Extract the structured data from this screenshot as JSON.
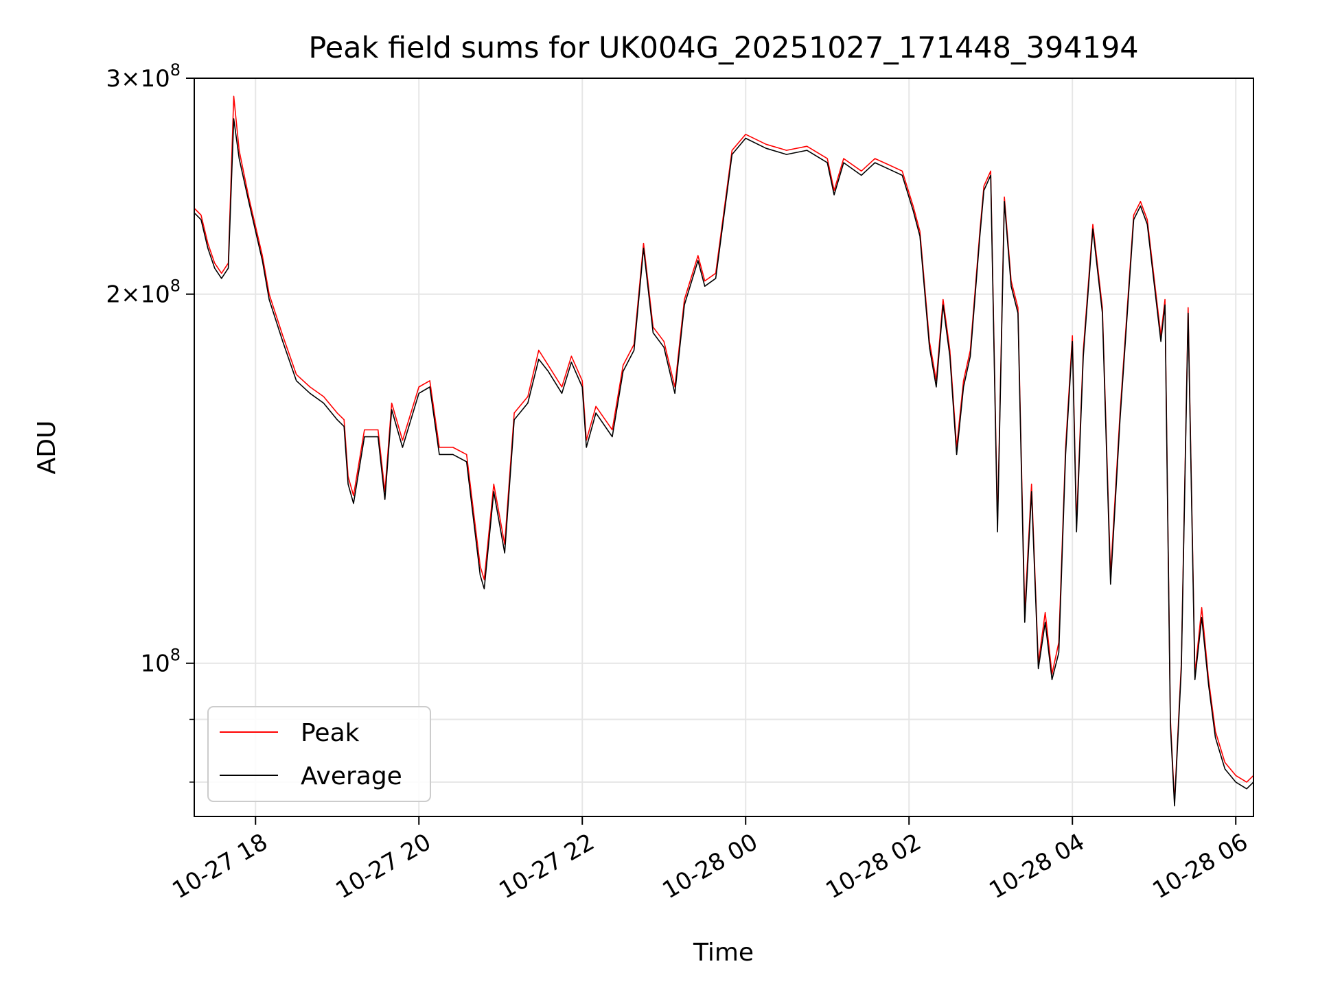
{
  "chart_data": {
    "type": "line",
    "title": "Peak field sums for UK004G_20251027_171448_394194",
    "xlabel": "Time",
    "ylabel": "ADU",
    "y_scale": "log",
    "ylim": [
      75000000,
      300000000
    ],
    "xlim": [
      "2025-10-27 17:15",
      "2025-10-28 06:13"
    ],
    "grid": true,
    "legend_position": "lower-left",
    "x_ticks": [
      {
        "t": "2025-10-27 18:00",
        "label": "10-27 18"
      },
      {
        "t": "2025-10-27 20:00",
        "label": "10-27 20"
      },
      {
        "t": "2025-10-27 22:00",
        "label": "10-27 22"
      },
      {
        "t": "2025-10-28 00:00",
        "label": "10-28 00"
      },
      {
        "t": "2025-10-28 02:00",
        "label": "10-28 02"
      },
      {
        "t": "2025-10-28 04:00",
        "label": "10-28 04"
      },
      {
        "t": "2025-10-28 06:00",
        "label": "10-28 06"
      }
    ],
    "y_ticks": [
      {
        "v": 100000000,
        "mant": "",
        "exp": "8"
      },
      {
        "v": 200000000,
        "mant": "2",
        "exp": "8"
      },
      {
        "v": 300000000,
        "mant": "3",
        "exp": "8"
      }
    ],
    "y_minor_ticks": [
      80000000,
      90000000
    ],
    "colors": {
      "Peak": "#ff0000",
      "Average": "#000000"
    },
    "series": [
      {
        "name": "Peak",
        "color": "#ff0000",
        "points": [
          [
            "2025-10-27 17:15",
            235000000
          ],
          [
            "2025-10-27 17:20",
            232000000
          ],
          [
            "2025-10-27 17:25",
            220000000
          ],
          [
            "2025-10-27 17:30",
            212000000
          ],
          [
            "2025-10-27 17:35",
            208000000
          ],
          [
            "2025-10-27 17:40",
            212000000
          ],
          [
            "2025-10-27 17:44",
            290000000
          ],
          [
            "2025-10-27 17:48",
            262000000
          ],
          [
            "2025-10-27 17:55",
            240000000
          ],
          [
            "2025-10-27 18:05",
            215000000
          ],
          [
            "2025-10-27 18:10",
            200000000
          ],
          [
            "2025-10-27 18:20",
            185000000
          ],
          [
            "2025-10-27 18:30",
            172000000
          ],
          [
            "2025-10-27 18:40",
            168000000
          ],
          [
            "2025-10-27 18:50",
            165000000
          ],
          [
            "2025-10-27 19:00",
            160000000
          ],
          [
            "2025-10-27 19:05",
            158000000
          ],
          [
            "2025-10-27 19:08",
            142000000
          ],
          [
            "2025-10-27 19:12",
            137000000
          ],
          [
            "2025-10-27 19:20",
            155000000
          ],
          [
            "2025-10-27 19:30",
            155000000
          ],
          [
            "2025-10-27 19:35",
            138000000
          ],
          [
            "2025-10-27 19:40",
            163000000
          ],
          [
            "2025-10-27 19:48",
            152000000
          ],
          [
            "2025-10-27 20:00",
            168000000
          ],
          [
            "2025-10-27 20:08",
            170000000
          ],
          [
            "2025-10-27 20:15",
            150000000
          ],
          [
            "2025-10-27 20:25",
            150000000
          ],
          [
            "2025-10-27 20:35",
            148000000
          ],
          [
            "2025-10-27 20:45",
            120000000
          ],
          [
            "2025-10-27 20:48",
            117000000
          ],
          [
            "2025-10-27 20:55",
            140000000
          ],
          [
            "2025-10-27 21:03",
            125000000
          ],
          [
            "2025-10-27 21:10",
            160000000
          ],
          [
            "2025-10-27 21:20",
            165000000
          ],
          [
            "2025-10-27 21:28",
            180000000
          ],
          [
            "2025-10-27 21:35",
            175000000
          ],
          [
            "2025-10-27 21:45",
            168000000
          ],
          [
            "2025-10-27 21:52",
            178000000
          ],
          [
            "2025-10-27 22:00",
            170000000
          ],
          [
            "2025-10-27 22:03",
            152000000
          ],
          [
            "2025-10-27 22:10",
            162000000
          ],
          [
            "2025-10-27 22:22",
            155000000
          ],
          [
            "2025-10-27 22:30",
            175000000
          ],
          [
            "2025-10-27 22:38",
            182000000
          ],
          [
            "2025-10-27 22:45",
            220000000
          ],
          [
            "2025-10-27 22:52",
            188000000
          ],
          [
            "2025-10-27 23:00",
            183000000
          ],
          [
            "2025-10-27 23:08",
            168000000
          ],
          [
            "2025-10-27 23:15",
            198000000
          ],
          [
            "2025-10-27 23:25",
            215000000
          ],
          [
            "2025-10-27 23:30",
            205000000
          ],
          [
            "2025-10-27 23:38",
            208000000
          ],
          [
            "2025-10-27 23:50",
            262000000
          ],
          [
            "2025-10-28 00:00",
            270000000
          ],
          [
            "2025-10-28 00:15",
            265000000
          ],
          [
            "2025-10-28 00:30",
            262000000
          ],
          [
            "2025-10-28 00:45",
            264000000
          ],
          [
            "2025-10-28 01:00",
            258000000
          ],
          [
            "2025-10-28 01:05",
            243000000
          ],
          [
            "2025-10-28 01:12",
            258000000
          ],
          [
            "2025-10-28 01:25",
            252000000
          ],
          [
            "2025-10-28 01:35",
            258000000
          ],
          [
            "2025-10-28 01:45",
            255000000
          ],
          [
            "2025-10-28 01:55",
            252000000
          ],
          [
            "2025-10-28 02:03",
            236000000
          ],
          [
            "2025-10-28 02:08",
            225000000
          ],
          [
            "2025-10-28 02:15",
            183000000
          ],
          [
            "2025-10-28 02:20",
            170000000
          ],
          [
            "2025-10-28 02:25",
            198000000
          ],
          [
            "2025-10-28 02:30",
            180000000
          ],
          [
            "2025-10-28 02:35",
            150000000
          ],
          [
            "2025-10-28 02:40",
            170000000
          ],
          [
            "2025-10-28 02:45",
            180000000
          ],
          [
            "2025-10-28 02:52",
            225000000
          ],
          [
            "2025-10-28 02:55",
            245000000
          ],
          [
            "2025-10-28 03:00",
            252000000
          ],
          [
            "2025-10-28 03:05",
            130000000
          ],
          [
            "2025-10-28 03:10",
            240000000
          ],
          [
            "2025-10-28 03:15",
            205000000
          ],
          [
            "2025-10-28 03:20",
            195000000
          ],
          [
            "2025-10-28 03:25",
            110000000
          ],
          [
            "2025-10-28 03:30",
            140000000
          ],
          [
            "2025-10-28 03:35",
            100000000
          ],
          [
            "2025-10-28 03:40",
            110000000
          ],
          [
            "2025-10-28 03:45",
            98000000
          ],
          [
            "2025-10-28 03:50",
            104000000
          ],
          [
            "2025-10-28 03:55",
            150000000
          ],
          [
            "2025-10-28 04:00",
            185000000
          ],
          [
            "2025-10-28 04:03",
            130000000
          ],
          [
            "2025-10-28 04:08",
            180000000
          ],
          [
            "2025-10-28 04:15",
            228000000
          ],
          [
            "2025-10-28 04:22",
            195000000
          ],
          [
            "2025-10-28 04:28",
            118000000
          ],
          [
            "2025-10-28 04:35",
            160000000
          ],
          [
            "2025-10-28 04:45",
            232000000
          ],
          [
            "2025-10-28 04:50",
            238000000
          ],
          [
            "2025-10-28 04:55",
            230000000
          ],
          [
            "2025-10-28 05:05",
            185000000
          ],
          [
            "2025-10-28 05:08",
            198000000
          ],
          [
            "2025-10-28 05:12",
            90000000
          ],
          [
            "2025-10-28 05:15",
            77000000
          ],
          [
            "2025-10-28 05:20",
            100000000
          ],
          [
            "2025-10-28 05:25",
            195000000
          ],
          [
            "2025-10-28 05:30",
            98000000
          ],
          [
            "2025-10-28 05:35",
            111000000
          ],
          [
            "2025-10-28 05:40",
            97000000
          ],
          [
            "2025-10-28 05:45",
            88000000
          ],
          [
            "2025-10-28 05:52",
            83000000
          ],
          [
            "2025-10-28 06:00",
            81000000
          ],
          [
            "2025-10-28 06:08",
            80000000
          ],
          [
            "2025-10-28 06:13",
            81000000
          ]
        ]
      },
      {
        "name": "Average",
        "color": "#000000",
        "points": [
          [
            "2025-10-27 17:15",
            233000000
          ],
          [
            "2025-10-27 17:20",
            230000000
          ],
          [
            "2025-10-27 17:25",
            218000000
          ],
          [
            "2025-10-27 17:30",
            210000000
          ],
          [
            "2025-10-27 17:35",
            206000000
          ],
          [
            "2025-10-27 17:40",
            210000000
          ],
          [
            "2025-10-27 17:44",
            278000000
          ],
          [
            "2025-10-27 17:48",
            258000000
          ],
          [
            "2025-10-27 17:55",
            238000000
          ],
          [
            "2025-10-27 18:05",
            213000000
          ],
          [
            "2025-10-27 18:10",
            198000000
          ],
          [
            "2025-10-27 18:20",
            183000000
          ],
          [
            "2025-10-27 18:30",
            170000000
          ],
          [
            "2025-10-27 18:40",
            166000000
          ],
          [
            "2025-10-27 18:50",
            163000000
          ],
          [
            "2025-10-27 19:00",
            158000000
          ],
          [
            "2025-10-27 19:05",
            156000000
          ],
          [
            "2025-10-27 19:08",
            140000000
          ],
          [
            "2025-10-27 19:12",
            135000000
          ],
          [
            "2025-10-27 19:20",
            153000000
          ],
          [
            "2025-10-27 19:30",
            153000000
          ],
          [
            "2025-10-27 19:35",
            136000000
          ],
          [
            "2025-10-27 19:40",
            161000000
          ],
          [
            "2025-10-27 19:48",
            150000000
          ],
          [
            "2025-10-27 20:00",
            166000000
          ],
          [
            "2025-10-27 20:08",
            168000000
          ],
          [
            "2025-10-27 20:15",
            148000000
          ],
          [
            "2025-10-27 20:25",
            148000000
          ],
          [
            "2025-10-27 20:35",
            146000000
          ],
          [
            "2025-10-27 20:45",
            118000000
          ],
          [
            "2025-10-27 20:48",
            115000000
          ],
          [
            "2025-10-27 20:55",
            138000000
          ],
          [
            "2025-10-27 21:03",
            123000000
          ],
          [
            "2025-10-27 21:10",
            158000000
          ],
          [
            "2025-10-27 21:20",
            163000000
          ],
          [
            "2025-10-27 21:28",
            177000000
          ],
          [
            "2025-10-27 21:35",
            173000000
          ],
          [
            "2025-10-27 21:45",
            166000000
          ],
          [
            "2025-10-27 21:52",
            176000000
          ],
          [
            "2025-10-27 22:00",
            168000000
          ],
          [
            "2025-10-27 22:03",
            150000000
          ],
          [
            "2025-10-27 22:10",
            160000000
          ],
          [
            "2025-10-27 22:22",
            153000000
          ],
          [
            "2025-10-27 22:30",
            173000000
          ],
          [
            "2025-10-27 22:38",
            180000000
          ],
          [
            "2025-10-27 22:45",
            218000000
          ],
          [
            "2025-10-27 22:52",
            186000000
          ],
          [
            "2025-10-27 23:00",
            181000000
          ],
          [
            "2025-10-27 23:08",
            166000000
          ],
          [
            "2025-10-27 23:15",
            196000000
          ],
          [
            "2025-10-27 23:25",
            213000000
          ],
          [
            "2025-10-27 23:30",
            203000000
          ],
          [
            "2025-10-27 23:38",
            206000000
          ],
          [
            "2025-10-27 23:50",
            260000000
          ],
          [
            "2025-10-28 00:00",
            268000000
          ],
          [
            "2025-10-28 00:15",
            263000000
          ],
          [
            "2025-10-28 00:30",
            260000000
          ],
          [
            "2025-10-28 00:45",
            262000000
          ],
          [
            "2025-10-28 01:00",
            256000000
          ],
          [
            "2025-10-28 01:05",
            241000000
          ],
          [
            "2025-10-28 01:12",
            256000000
          ],
          [
            "2025-10-28 01:25",
            250000000
          ],
          [
            "2025-10-28 01:35",
            256000000
          ],
          [
            "2025-10-28 01:45",
            253000000
          ],
          [
            "2025-10-28 01:55",
            250000000
          ],
          [
            "2025-10-28 02:03",
            234000000
          ],
          [
            "2025-10-28 02:08",
            223000000
          ],
          [
            "2025-10-28 02:15",
            181000000
          ],
          [
            "2025-10-28 02:20",
            168000000
          ],
          [
            "2025-10-28 02:25",
            196000000
          ],
          [
            "2025-10-28 02:30",
            178000000
          ],
          [
            "2025-10-28 02:35",
            148000000
          ],
          [
            "2025-10-28 02:40",
            168000000
          ],
          [
            "2025-10-28 02:45",
            178000000
          ],
          [
            "2025-10-28 02:52",
            223000000
          ],
          [
            "2025-10-28 02:55",
            243000000
          ],
          [
            "2025-10-28 03:00",
            250000000
          ],
          [
            "2025-10-28 03:05",
            128000000
          ],
          [
            "2025-10-28 03:10",
            238000000
          ],
          [
            "2025-10-28 03:15",
            203000000
          ],
          [
            "2025-10-28 03:20",
            193000000
          ],
          [
            "2025-10-28 03:25",
            108000000
          ],
          [
            "2025-10-28 03:30",
            138000000
          ],
          [
            "2025-10-28 03:35",
            99000000
          ],
          [
            "2025-10-28 03:40",
            108000000
          ],
          [
            "2025-10-28 03:45",
            97000000
          ],
          [
            "2025-10-28 03:50",
            102000000
          ],
          [
            "2025-10-28 03:55",
            148000000
          ],
          [
            "2025-10-28 04:00",
            183000000
          ],
          [
            "2025-10-28 04:03",
            128000000
          ],
          [
            "2025-10-28 04:08",
            178000000
          ],
          [
            "2025-10-28 04:15",
            226000000
          ],
          [
            "2025-10-28 04:22",
            193000000
          ],
          [
            "2025-10-28 04:28",
            116000000
          ],
          [
            "2025-10-28 04:35",
            158000000
          ],
          [
            "2025-10-28 04:45",
            230000000
          ],
          [
            "2025-10-28 04:50",
            236000000
          ],
          [
            "2025-10-28 04:55",
            228000000
          ],
          [
            "2025-10-28 05:05",
            183000000
          ],
          [
            "2025-10-28 05:08",
            196000000
          ],
          [
            "2025-10-28 05:12",
            89000000
          ],
          [
            "2025-10-28 05:15",
            76500000
          ],
          [
            "2025-10-28 05:20",
            99000000
          ],
          [
            "2025-10-28 05:25",
            193000000
          ],
          [
            "2025-10-28 05:30",
            97000000
          ],
          [
            "2025-10-28 05:35",
            109000000
          ],
          [
            "2025-10-28 05:40",
            96000000
          ],
          [
            "2025-10-28 05:45",
            87000000
          ],
          [
            "2025-10-28 05:52",
            82000000
          ],
          [
            "2025-10-28 06:00",
            80000000
          ],
          [
            "2025-10-28 06:08",
            79000000
          ],
          [
            "2025-10-28 06:13",
            80000000
          ]
        ]
      }
    ]
  }
}
